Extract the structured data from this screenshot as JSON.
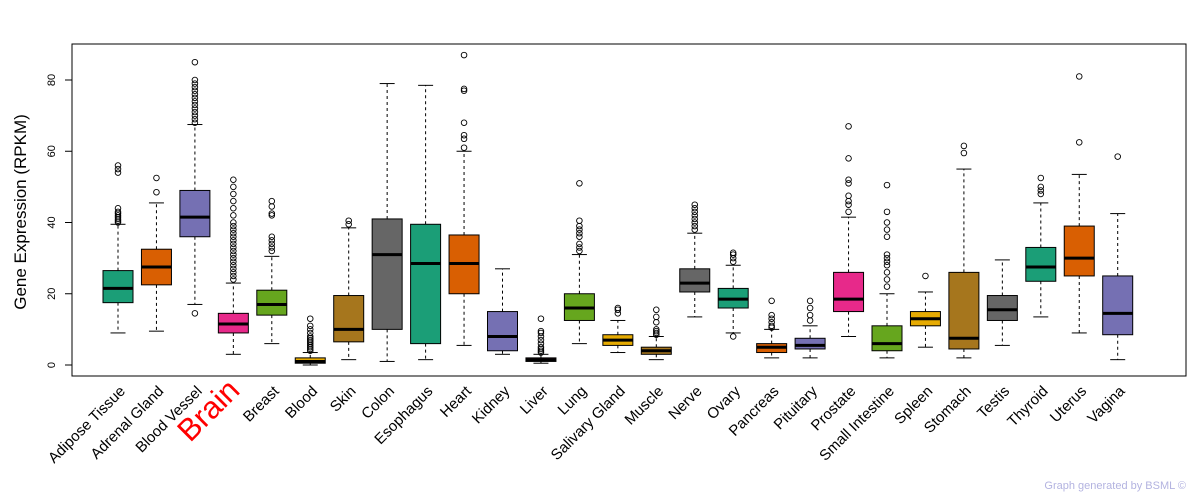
{
  "credit": "Graph generated by BSML ©",
  "chart_data": {
    "type": "boxplot",
    "title": "",
    "xlabel": "",
    "ylabel": "Gene Expression (RPKM)",
    "ylim": [
      -2,
      90
    ],
    "yticks": [
      0,
      20,
      40,
      60,
      80
    ],
    "highlight": "Brain",
    "categories": [
      {
        "name": "Adipose Tissue",
        "color": "#1b9e77",
        "min": 9,
        "q1": 17.5,
        "median": 21.5,
        "q3": 26.5,
        "max": 39.5,
        "outliers": [
          40,
          40.5,
          41,
          41.5,
          42,
          42.5,
          43,
          44,
          54,
          55,
          56
        ]
      },
      {
        "name": "Adrenal Gland",
        "color": "#d95f02",
        "min": 9.5,
        "q1": 22.5,
        "median": 27.5,
        "q3": 32.5,
        "max": 45.5,
        "outliers": [
          48.5,
          52.5
        ]
      },
      {
        "name": "Blood Vessel",
        "color": "#7570b3",
        "min": 17,
        "q1": 36,
        "median": 41.5,
        "q3": 49,
        "max": 67.5,
        "outliers": [
          14.5,
          68,
          69,
          70,
          71,
          72,
          73,
          74,
          75,
          76,
          77,
          78,
          79,
          80,
          85
        ]
      },
      {
        "name": "Brain",
        "color": "#e7298a",
        "min": 3,
        "q1": 9,
        "median": 11.5,
        "q3": 14.5,
        "max": 23,
        "outliers": [
          24,
          25,
          26,
          27,
          28,
          29,
          30,
          31,
          32,
          33,
          34,
          35,
          36,
          37,
          38,
          39,
          40,
          42,
          44,
          46,
          48,
          50,
          52
        ]
      },
      {
        "name": "Breast",
        "color": "#66a61e",
        "min": 6,
        "q1": 14,
        "median": 17,
        "q3": 21,
        "max": 30.5,
        "outliers": [
          32,
          33,
          34,
          35,
          36,
          42,
          42.5,
          44.5,
          46
        ]
      },
      {
        "name": "Blood",
        "color": "#e6ab02",
        "min": 0,
        "q1": 0.5,
        "median": 1,
        "q3": 2,
        "max": 3.5,
        "outliers": [
          4,
          4.5,
          5,
          5.5,
          6,
          6.5,
          7,
          7.5,
          8,
          9,
          10,
          11,
          13
        ]
      },
      {
        "name": "Skin",
        "color": "#a6761d",
        "min": 1.5,
        "q1": 6.5,
        "median": 10,
        "q3": 19.5,
        "max": 38.5,
        "outliers": [
          39.5,
          40.5
        ]
      },
      {
        "name": "Colon",
        "color": "#666666",
        "min": 1,
        "q1": 10,
        "median": 31,
        "q3": 41,
        "max": 79,
        "outliers": []
      },
      {
        "name": "Esophagus",
        "color": "#1b9e77",
        "min": 1.5,
        "q1": 6,
        "median": 28.5,
        "q3": 39.5,
        "max": 78.5,
        "outliers": []
      },
      {
        "name": "Heart",
        "color": "#d95f02",
        "min": 5.5,
        "q1": 20,
        "median": 28.5,
        "q3": 36.5,
        "max": 60,
        "outliers": [
          61,
          63.5,
          64.5,
          68,
          77,
          77.5,
          87
        ]
      },
      {
        "name": "Kidney",
        "color": "#7570b3",
        "min": 3,
        "q1": 4,
        "median": 8,
        "q3": 15,
        "max": 27,
        "outliers": []
      },
      {
        "name": "Liver",
        "color": "#e7298a",
        "min": 0.5,
        "q1": 1,
        "median": 1.5,
        "q3": 2,
        "max": 3,
        "outliers": [
          3.5,
          4,
          4.5,
          5,
          6,
          7,
          8,
          9,
          9.5,
          13
        ]
      },
      {
        "name": "Lung",
        "color": "#66a61e",
        "min": 6,
        "q1": 12.5,
        "median": 16,
        "q3": 20,
        "max": 31,
        "outliers": [
          32,
          33,
          34,
          36,
          37,
          38,
          39,
          40.5,
          51
        ]
      },
      {
        "name": "Salivary Gland",
        "color": "#e6ab02",
        "min": 3.5,
        "q1": 5.5,
        "median": 7,
        "q3": 8.5,
        "max": 12.5,
        "outliers": [
          14.5,
          15.5,
          16
        ]
      },
      {
        "name": "Muscle",
        "color": "#a6761d",
        "min": 1.5,
        "q1": 3,
        "median": 4,
        "q3": 5,
        "max": 8,
        "outliers": [
          8.5,
          9,
          9.5,
          10,
          12,
          13.5,
          15.5
        ]
      },
      {
        "name": "Nerve",
        "color": "#666666",
        "min": 13.5,
        "q1": 20.5,
        "median": 23,
        "q3": 27,
        "max": 37,
        "outliers": [
          38,
          39,
          40,
          41,
          42,
          43,
          44,
          45
        ]
      },
      {
        "name": "Ovary",
        "color": "#1b9e77",
        "min": 9,
        "q1": 16,
        "median": 18.5,
        "q3": 21.5,
        "max": 28,
        "outliers": [
          8,
          29,
          30,
          31,
          31.5
        ]
      },
      {
        "name": "Pancreas",
        "color": "#d95f02",
        "min": 2,
        "q1": 3.5,
        "median": 5,
        "q3": 6,
        "max": 10,
        "outliers": [
          10.5,
          11,
          12,
          13,
          14,
          18
        ]
      },
      {
        "name": "Pituitary",
        "color": "#7570b3",
        "min": 2,
        "q1": 4.5,
        "median": 5.5,
        "q3": 7.5,
        "max": 11,
        "outliers": [
          12.5,
          14,
          16,
          18
        ]
      },
      {
        "name": "Prostate",
        "color": "#e7298a",
        "min": 8,
        "q1": 15,
        "median": 18.5,
        "q3": 26,
        "max": 41.5,
        "outliers": [
          43,
          45,
          46,
          47.5,
          51,
          52,
          58,
          67
        ]
      },
      {
        "name": "Small Intestine",
        "color": "#66a61e",
        "min": 2,
        "q1": 4,
        "median": 6,
        "q3": 11,
        "max": 20,
        "outliers": [
          22,
          24,
          26,
          28,
          29,
          30,
          31,
          36,
          38,
          40,
          43,
          50.5
        ]
      },
      {
        "name": "Spleen",
        "color": "#e6ab02",
        "min": 5,
        "q1": 11,
        "median": 13,
        "q3": 15,
        "max": 20.5,
        "outliers": [
          25
        ]
      },
      {
        "name": "Stomach",
        "color": "#a6761d",
        "min": 2,
        "q1": 4.5,
        "median": 7.5,
        "q3": 26,
        "max": 55,
        "outliers": [
          59.5,
          61.5
        ]
      },
      {
        "name": "Testis",
        "color": "#666666",
        "min": 5.5,
        "q1": 12.5,
        "median": 15.5,
        "q3": 19.5,
        "max": 29.5,
        "outliers": []
      },
      {
        "name": "Thyroid",
        "color": "#1b9e77",
        "min": 13.5,
        "q1": 23.5,
        "median": 27.5,
        "q3": 33,
        "max": 45.5,
        "outliers": [
          48,
          49,
          50,
          52.5
        ]
      },
      {
        "name": "Uterus",
        "color": "#d95f02",
        "min": 9,
        "q1": 25,
        "median": 30,
        "q3": 39,
        "max": 53.5,
        "outliers": [
          62.5,
          81
        ]
      },
      {
        "name": "Vagina",
        "color": "#7570b3",
        "min": 1.5,
        "q1": 8.5,
        "median": 14.5,
        "q3": 25,
        "max": 42.5,
        "outliers": [
          58.5
        ]
      }
    ]
  }
}
